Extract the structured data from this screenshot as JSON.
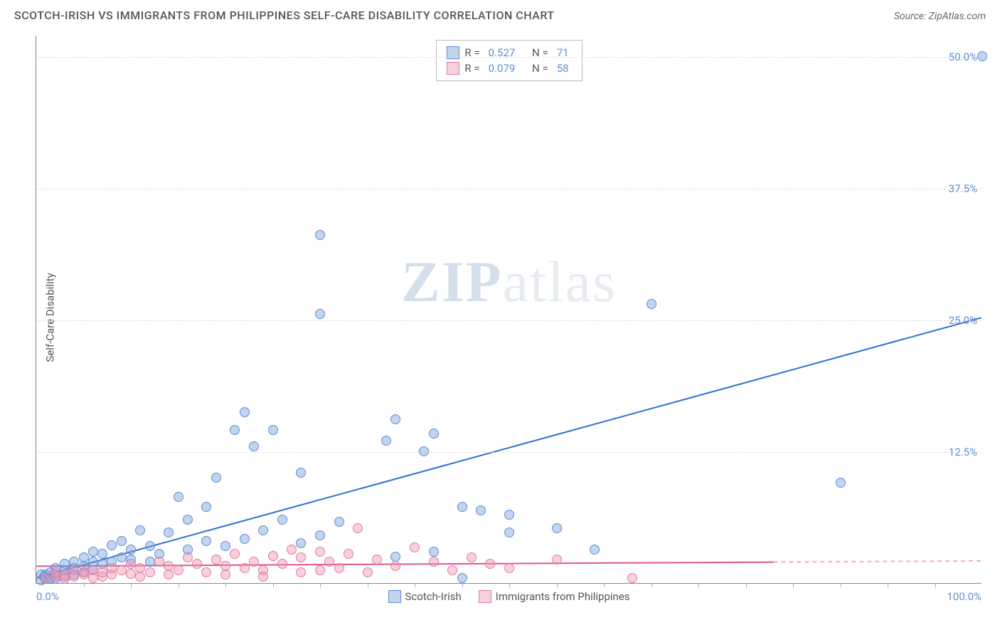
{
  "header": {
    "title": "SCOTCH-IRISH VS IMMIGRANTS FROM PHILIPPINES SELF-CARE DISABILITY CORRELATION CHART",
    "source_prefix": "Source: ",
    "source_name": "ZipAtlas.com"
  },
  "watermark": {
    "zip": "ZIP",
    "atlas": "atlas"
  },
  "chart": {
    "type": "scatter",
    "ylabel": "Self-Care Disability",
    "background_color": "#ffffff",
    "grid_color": "#dddddd",
    "axis_color": "#888888",
    "xlim": [
      0,
      100
    ],
    "ylim": [
      0,
      52
    ],
    "ytick_values": [
      12.5,
      25.0,
      37.5,
      50.0
    ],
    "ytick_labels": [
      "12.5%",
      "25.0%",
      "37.5%",
      "50.0%"
    ],
    "xtick_left": "0.0%",
    "xtick_right": "100.0%",
    "xtick_minor_step": 5,
    "marker_radius": 7,
    "label_fontsize": 15,
    "title_fontsize": 16,
    "tick_color": "#5b8fd6",
    "series": [
      {
        "name": "Scotch-Irish",
        "marker_fill": "rgba(120,160,220,0.45)",
        "marker_stroke": "#5b8fd6",
        "trend_color": "#2f6fd0",
        "trend_width": 2,
        "trend_y0": 0.5,
        "trend_y100": 25.2,
        "trend_x_extent": 100,
        "r": "0.527",
        "n": "71",
        "points": [
          [
            100,
            50
          ],
          [
            85,
            9.5
          ],
          [
            65,
            26.5
          ],
          [
            30,
            33
          ],
          [
            30,
            25.5
          ],
          [
            22,
            16.2
          ],
          [
            38,
            15.5
          ],
          [
            21,
            14.5
          ],
          [
            25,
            14.5
          ],
          [
            28,
            10.5
          ],
          [
            19,
            10
          ],
          [
            23,
            13
          ],
          [
            37,
            13.5
          ],
          [
            42,
            14.2
          ],
          [
            41,
            12.5
          ],
          [
            45,
            7.2
          ],
          [
            47,
            6.9
          ],
          [
            50,
            6.5
          ],
          [
            50,
            4.8
          ],
          [
            55,
            5.2
          ],
          [
            59,
            3.2
          ],
          [
            42,
            3.0
          ],
          [
            38,
            2.5
          ],
          [
            32,
            5.8
          ],
          [
            30,
            4.5
          ],
          [
            28,
            3.8
          ],
          [
            26,
            6.0
          ],
          [
            24,
            5.0
          ],
          [
            22,
            4.2
          ],
          [
            20,
            3.5
          ],
          [
            18,
            7.2
          ],
          [
            18,
            4.0
          ],
          [
            16,
            6.0
          ],
          [
            16,
            3.2
          ],
          [
            15,
            8.2
          ],
          [
            14,
            4.8
          ],
          [
            13,
            2.8
          ],
          [
            12,
            3.5
          ],
          [
            12,
            2.0
          ],
          [
            11,
            5.0
          ],
          [
            10,
            3.2
          ],
          [
            10,
            2.2
          ],
          [
            9,
            4.0
          ],
          [
            9,
            2.4
          ],
          [
            8,
            3.6
          ],
          [
            8,
            2.0
          ],
          [
            7,
            2.8
          ],
          [
            7,
            1.8
          ],
          [
            6,
            3.0
          ],
          [
            6,
            2.0
          ],
          [
            6,
            1.2
          ],
          [
            5,
            2.4
          ],
          [
            5,
            1.6
          ],
          [
            5,
            1.0
          ],
          [
            4,
            2.0
          ],
          [
            4,
            1.4
          ],
          [
            4,
            0.8
          ],
          [
            3,
            1.8
          ],
          [
            3,
            1.2
          ],
          [
            3,
            0.6
          ],
          [
            2,
            1.4
          ],
          [
            2,
            0.8
          ],
          [
            2,
            0.4
          ],
          [
            1.5,
            1.0
          ],
          [
            1.5,
            0.5
          ],
          [
            1,
            0.8
          ],
          [
            1,
            0.4
          ],
          [
            0.8,
            0.6
          ],
          [
            0.5,
            0.3
          ],
          [
            0.5,
            0.8
          ],
          [
            45,
            0.5
          ]
        ]
      },
      {
        "name": "Immigrants from Philippines",
        "marker_fill": "rgba(240,150,180,0.45)",
        "marker_stroke": "#e07ba0",
        "trend_color": "#e05590",
        "trend_width": 2,
        "trend_y0": 1.6,
        "trend_y100": 2.1,
        "trend_x_extent": 78,
        "r": "0.079",
        "n": "58",
        "points": [
          [
            63,
            0.5
          ],
          [
            55,
            2.2
          ],
          [
            50,
            1.4
          ],
          [
            48,
            1.8
          ],
          [
            46,
            2.4
          ],
          [
            44,
            1.2
          ],
          [
            42,
            2.0
          ],
          [
            40,
            3.4
          ],
          [
            38,
            1.6
          ],
          [
            36,
            2.2
          ],
          [
            35,
            1.0
          ],
          [
            34,
            5.2
          ],
          [
            33,
            2.8
          ],
          [
            32,
            1.4
          ],
          [
            31,
            2.0
          ],
          [
            30,
            3.0
          ],
          [
            30,
            1.2
          ],
          [
            28,
            2.4
          ],
          [
            28,
            1.0
          ],
          [
            27,
            3.2
          ],
          [
            26,
            1.8
          ],
          [
            25,
            2.6
          ],
          [
            24,
            1.2
          ],
          [
            24,
            0.6
          ],
          [
            23,
            2.0
          ],
          [
            22,
            1.4
          ],
          [
            21,
            2.8
          ],
          [
            20,
            1.6
          ],
          [
            20,
            0.8
          ],
          [
            19,
            2.2
          ],
          [
            18,
            1.0
          ],
          [
            17,
            1.8
          ],
          [
            16,
            2.4
          ],
          [
            15,
            1.2
          ],
          [
            14,
            1.6
          ],
          [
            14,
            0.8
          ],
          [
            13,
            2.0
          ],
          [
            12,
            1.0
          ],
          [
            11,
            1.4
          ],
          [
            11,
            0.6
          ],
          [
            10,
            1.8
          ],
          [
            10,
            0.9
          ],
          [
            9,
            1.2
          ],
          [
            8,
            0.8
          ],
          [
            8,
            1.4
          ],
          [
            7,
            0.6
          ],
          [
            7,
            1.0
          ],
          [
            6,
            1.2
          ],
          [
            6,
            0.5
          ],
          [
            5,
            0.8
          ],
          [
            5,
            1.0
          ],
          [
            4,
            0.6
          ],
          [
            4,
            1.2
          ],
          [
            3,
            0.8
          ],
          [
            3,
            0.4
          ],
          [
            2,
            0.6
          ],
          [
            2,
            1.0
          ],
          [
            1,
            0.5
          ]
        ]
      }
    ]
  },
  "stats_legend": {
    "r_label": "R =",
    "n_label": "N ="
  },
  "bottom_legend": {
    "items": [
      "Scotch-Irish",
      "Immigrants from Philippines"
    ]
  }
}
